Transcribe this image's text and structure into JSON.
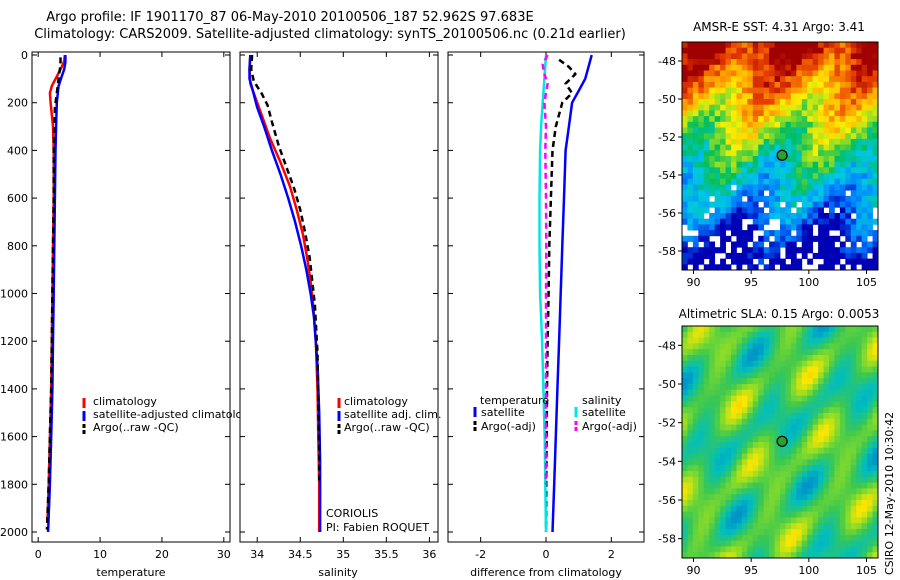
{
  "header": {
    "title_line1": "Argo profile: IF 1901170_87 06-May-2010 20100506_187 52.962S 97.683E",
    "title_line2": "Climatology: CARS2009. Satellite-adjusted climatology: synTS_20100506.nc (0.21d earlier)"
  },
  "footer": {
    "credit": "CSIRO 12-May-2010 10:30:42",
    "data_center": "CORIOLIS",
    "pi": "PI: Fabien ROQUET"
  },
  "colors": {
    "climatology": "#ff0000",
    "satellite": "#0000ff",
    "argo": "#000000",
    "salinity_satellite": "#00e5e5",
    "salinity_argo": "#ff00ff"
  },
  "chart_data": [
    {
      "type": "line",
      "xlabel": "temperature",
      "ylim": [
        2000,
        0
      ],
      "xlim": [
        -1,
        31
      ],
      "xticks": [
        0,
        10,
        20,
        30
      ],
      "yticks": [
        0,
        200,
        400,
        600,
        800,
        1000,
        1200,
        1400,
        1600,
        1800,
        2000
      ],
      "legend": {
        "placement": "bottom-right",
        "entries": [
          "climatology",
          "satellite-adjusted climatolog",
          "Argo(..raw -QC)"
        ]
      },
      "series": [
        {
          "name": "climatology",
          "color": "#ff0000",
          "dash": "",
          "points": [
            [
              4.3,
              0
            ],
            [
              4.2,
              25
            ],
            [
              3.8,
              50
            ],
            [
              3.0,
              90
            ],
            [
              2.2,
              130
            ],
            [
              1.9,
              160
            ],
            [
              2.0,
              200
            ],
            [
              2.4,
              300
            ],
            [
              2.5,
              400
            ],
            [
              2.5,
              600
            ],
            [
              2.4,
              800
            ],
            [
              2.3,
              1000
            ],
            [
              2.2,
              1200
            ],
            [
              2.1,
              1400
            ],
            [
              1.9,
              1600
            ],
            [
              1.7,
              1800
            ],
            [
              1.5,
              1950
            ]
          ]
        },
        {
          "name": "satellite-adjusted climatolog",
          "color": "#0000ff",
          "dash": "",
          "points": [
            [
              4.4,
              0
            ],
            [
              4.4,
              30
            ],
            [
              4.2,
              60
            ],
            [
              3.8,
              90
            ],
            [
              3.3,
              130
            ],
            [
              3.0,
              200
            ],
            [
              2.9,
              300
            ],
            [
              2.8,
              400
            ],
            [
              2.7,
              600
            ],
            [
              2.6,
              800
            ],
            [
              2.5,
              1000
            ],
            [
              2.4,
              1200
            ],
            [
              2.3,
              1400
            ],
            [
              2.1,
              1600
            ],
            [
              1.9,
              1800
            ],
            [
              1.6,
              2000
            ]
          ]
        },
        {
          "name": "Argo(..raw -QC)",
          "color": "#000000",
          "dash": "6,4",
          "points": [
            [
              3.6,
              10
            ],
            [
              3.6,
              40
            ],
            [
              3.4,
              80
            ],
            [
              3.2,
              120
            ],
            [
              3.0,
              160
            ],
            [
              2.7,
              220
            ],
            [
              2.6,
              300
            ],
            [
              2.5,
              400
            ],
            [
              2.5,
              600
            ],
            [
              2.4,
              800
            ],
            [
              2.3,
              1000
            ],
            [
              2.2,
              1200
            ],
            [
              2.1,
              1400
            ],
            [
              1.9,
              1600
            ],
            [
              1.7,
              1800
            ],
            [
              1.4,
              1990
            ]
          ]
        }
      ]
    },
    {
      "type": "line",
      "xlabel": "salinity",
      "ylim": [
        2000,
        0
      ],
      "xlim": [
        33.8,
        36.1
      ],
      "xticks": [
        34,
        34.5,
        35,
        35.5,
        36
      ],
      "xticklabels": [
        "34",
        "34.5",
        "35",
        "35.5",
        "36"
      ],
      "legend": {
        "placement": "bottom-right",
        "entries": [
          "climatology",
          "satellite adj. clim.",
          "Argo(..raw -QC)"
        ]
      },
      "series": [
        {
          "name": "climatology",
          "color": "#ff0000",
          "dash": "",
          "points": [
            [
              33.92,
              0
            ],
            [
              33.91,
              60
            ],
            [
              33.92,
              120
            ],
            [
              33.98,
              180
            ],
            [
              34.05,
              250
            ],
            [
              34.15,
              350
            ],
            [
              34.27,
              450
            ],
            [
              34.38,
              550
            ],
            [
              34.46,
              650
            ],
            [
              34.53,
              750
            ],
            [
              34.58,
              850
            ],
            [
              34.62,
              950
            ],
            [
              34.65,
              1050
            ],
            [
              34.68,
              1200
            ],
            [
              34.7,
              1400
            ],
            [
              34.71,
              1600
            ],
            [
              34.72,
              1800
            ],
            [
              34.72,
              2000
            ]
          ]
        },
        {
          "name": "satellite adj. clim.",
          "color": "#0000ff",
          "dash": "",
          "points": [
            [
              33.92,
              0
            ],
            [
              33.91,
              60
            ],
            [
              33.91,
              100
            ],
            [
              33.95,
              150
            ],
            [
              34.0,
              220
            ],
            [
              34.08,
              300
            ],
            [
              34.17,
              400
            ],
            [
              34.27,
              500
            ],
            [
              34.36,
              600
            ],
            [
              34.44,
              700
            ],
            [
              34.51,
              800
            ],
            [
              34.57,
              900
            ],
            [
              34.62,
              1000
            ],
            [
              34.66,
              1100
            ],
            [
              34.7,
              1300
            ],
            [
              34.72,
              1500
            ],
            [
              34.73,
              1700
            ],
            [
              34.73,
              1900
            ],
            [
              34.73,
              2000
            ]
          ]
        },
        {
          "name": "Argo(..raw -QC)",
          "color": "#000000",
          "dash": "6,4",
          "points": [
            [
              33.94,
              0
            ],
            [
              33.93,
              60
            ],
            [
              33.96,
              110
            ],
            [
              34.05,
              160
            ],
            [
              34.12,
              210
            ],
            [
              34.17,
              280
            ],
            [
              34.25,
              380
            ],
            [
              34.35,
              480
            ],
            [
              34.43,
              560
            ],
            [
              34.5,
              650
            ],
            [
              34.56,
              750
            ],
            [
              34.61,
              850
            ],
            [
              34.64,
              950
            ],
            [
              34.67,
              1050
            ],
            [
              34.7,
              1250
            ],
            [
              34.71,
              1450
            ],
            [
              34.72,
              1650
            ],
            [
              34.72,
              1800
            ]
          ]
        }
      ]
    },
    {
      "type": "line",
      "xlabel": "difference from climatology",
      "ylim": [
        2000,
        0
      ],
      "xlim": [
        -3,
        3
      ],
      "xticks": [
        -2,
        0,
        2
      ],
      "legend": {
        "placement": "bottom",
        "groups": [
          "temperature",
          "salinity"
        ],
        "entries": [
          "satellite",
          "Argo(-adj)",
          "satellite",
          "Argo(-adj)"
        ]
      },
      "series": [
        {
          "name": "satellite",
          "color": "#0000ff",
          "dash": "",
          "points": [
            [
              1.4,
              0
            ],
            [
              1.3,
              50
            ],
            [
              1.2,
              100
            ],
            [
              1.0,
              150
            ],
            [
              0.8,
              200
            ],
            [
              0.7,
              300
            ],
            [
              0.6,
              400
            ],
            [
              0.55,
              600
            ],
            [
              0.5,
              800
            ],
            [
              0.45,
              1000
            ],
            [
              0.4,
              1200
            ],
            [
              0.35,
              1400
            ],
            [
              0.3,
              1600
            ],
            [
              0.25,
              1800
            ],
            [
              0.2,
              2000
            ]
          ]
        },
        {
          "name": "Argo(-adj)",
          "color": "#000000",
          "dash": "6,4",
          "points": [
            [
              0.4,
              20
            ],
            [
              0.7,
              50
            ],
            [
              0.9,
              80
            ],
            [
              0.6,
              120
            ],
            [
              0.8,
              160
            ],
            [
              0.5,
              200
            ],
            [
              0.3,
              300
            ],
            [
              0.2,
              400
            ],
            [
              0.15,
              600
            ],
            [
              0.1,
              800
            ],
            [
              0.08,
              1000
            ],
            [
              0.05,
              1200
            ],
            [
              0.03,
              1400
            ],
            [
              0.02,
              1600
            ],
            [
              0.01,
              1800
            ],
            [
              0.0,
              2000
            ]
          ]
        },
        {
          "name": "satellite",
          "color": "#00e5e5",
          "dash": "",
          "points": [
            [
              0.0,
              0
            ],
            [
              -0.05,
              100
            ],
            [
              -0.1,
              200
            ],
            [
              -0.15,
              300
            ],
            [
              -0.18,
              400
            ],
            [
              -0.2,
              600
            ],
            [
              -0.2,
              800
            ],
            [
              -0.18,
              1000
            ],
            [
              -0.12,
              1200
            ],
            [
              -0.08,
              1400
            ],
            [
              -0.04,
              1600
            ],
            [
              -0.02,
              1800
            ],
            [
              0.0,
              2000
            ]
          ]
        },
        {
          "name": "Argo(-adj)",
          "color": "#ff00ff",
          "dash": "6,4",
          "points": [
            [
              0.05,
              0
            ],
            [
              -0.1,
              40
            ],
            [
              -0.05,
              80
            ],
            [
              0.05,
              120
            ],
            [
              -0.05,
              200
            ],
            [
              0.0,
              300
            ],
            [
              -0.02,
              400
            ],
            [
              0.0,
              600
            ],
            [
              0.01,
              800
            ],
            [
              0.0,
              1000
            ],
            [
              0.0,
              1200
            ],
            [
              0.0,
              1400
            ],
            [
              0.0,
              1600
            ],
            [
              0.0,
              1800
            ]
          ]
        }
      ]
    },
    {
      "type": "heatmap",
      "title": "AMSR-E SST: 4.31 Argo: 3.41",
      "xlim": [
        89,
        106
      ],
      "ylim": [
        -59,
        -47
      ],
      "xticks": [
        90,
        95,
        100,
        105
      ],
      "yticks": [
        -48,
        -50,
        -52,
        -54,
        -56,
        -58
      ],
      "marker": {
        "lon": 97.683,
        "lat": -52.962
      }
    },
    {
      "type": "heatmap",
      "title": "Altimetric SLA: 0.15 Argo: 0.0053",
      "xlim": [
        89,
        106
      ],
      "ylim": [
        -59,
        -47
      ],
      "xticks": [
        90,
        95,
        100,
        105
      ],
      "yticks": [
        -48,
        -50,
        -52,
        -54,
        -56,
        -58
      ],
      "marker": {
        "lon": 97.683,
        "lat": -52.962
      }
    }
  ]
}
